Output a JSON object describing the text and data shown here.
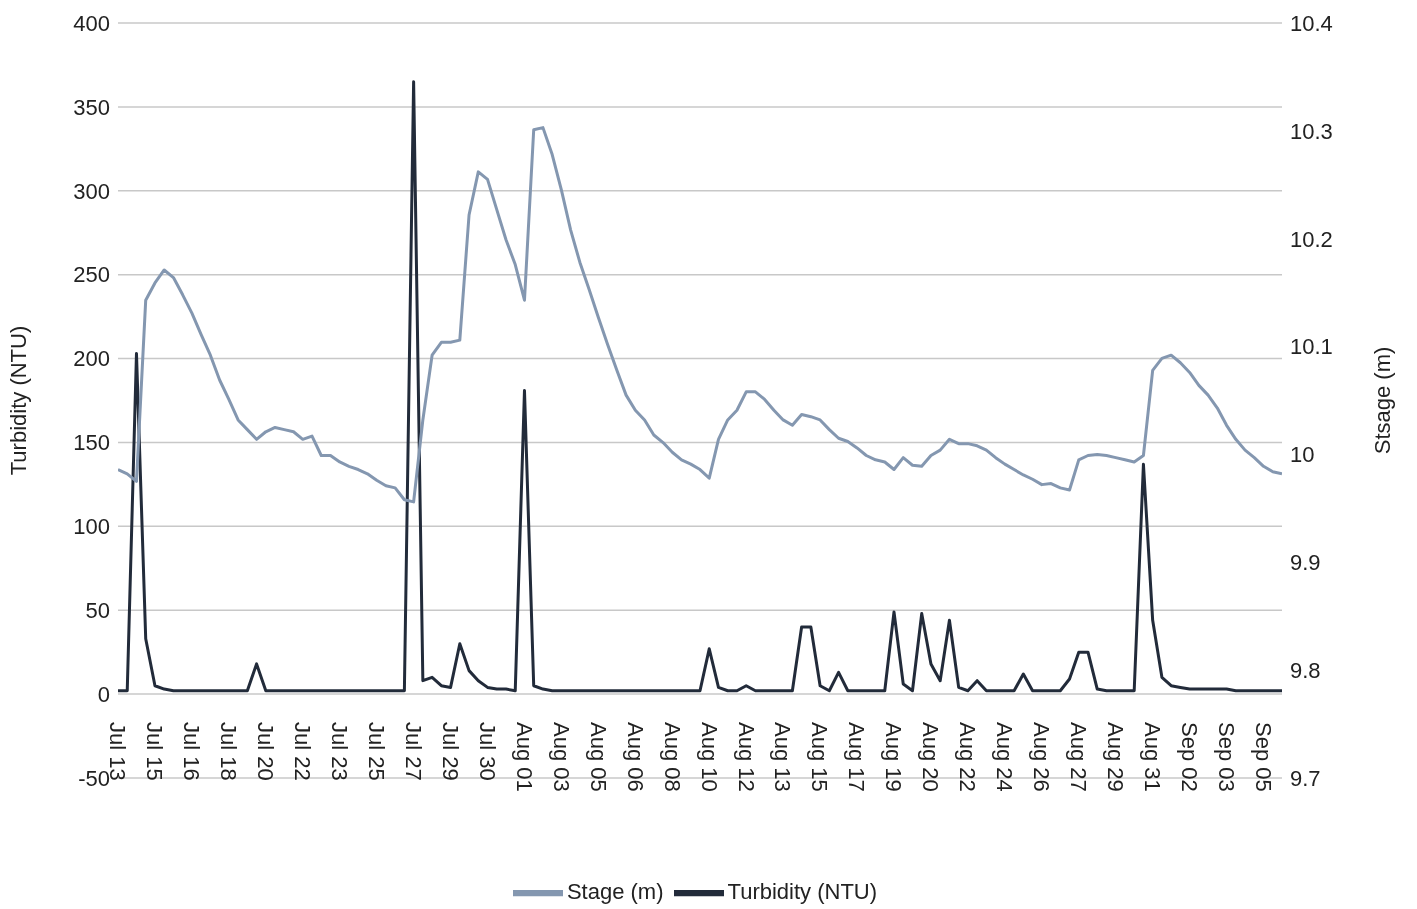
{
  "chart_data": {
    "type": "line",
    "ylabel": "Turbidity (NTU)",
    "y2label": "Stsage (m)",
    "categories": [
      "Jul 13",
      null,
      null,
      null,
      "Jul 15",
      null,
      null,
      null,
      "Jul 16",
      null,
      null,
      null,
      "Jul 18",
      null,
      null,
      null,
      "Jul 20",
      null,
      null,
      null,
      "Jul 22",
      null,
      null,
      null,
      "Jul 23",
      null,
      null,
      null,
      "Jul 25",
      null,
      null,
      null,
      "Jul 27",
      null,
      null,
      null,
      "Jul 29",
      null,
      null,
      null,
      "Jul 30",
      null,
      null,
      null,
      "Aug 01",
      null,
      null,
      null,
      "Aug 03",
      null,
      null,
      null,
      "Aug 05",
      null,
      null,
      null,
      "Aug 06",
      null,
      null,
      null,
      "Aug 08",
      null,
      null,
      null,
      "Aug 10",
      null,
      null,
      null,
      "Aug 12",
      null,
      null,
      null,
      "Aug 13",
      null,
      null,
      null,
      "Aug 15",
      null,
      null,
      null,
      "Aug 17",
      null,
      null,
      null,
      "Aug 19",
      null,
      null,
      null,
      "Aug 20",
      null,
      null,
      null,
      "Aug 22",
      null,
      null,
      null,
      "Aug 24",
      null,
      null,
      null,
      "Aug 26",
      null,
      null,
      null,
      "Aug 27",
      null,
      null,
      null,
      "Aug 29",
      null,
      null,
      null,
      "Aug 31",
      null,
      null,
      null,
      "Sep 02",
      null,
      null,
      null,
      "Sep 03",
      null,
      null,
      null,
      "Sep 05",
      null,
      null
    ],
    "series": [
      {
        "name": "Turbidity (NTU)",
        "color": "#222b3a",
        "values": [
          2,
          2,
          203,
          33,
          5,
          3,
          2,
          2,
          2,
          2,
          2,
          2,
          2,
          2,
          2,
          18,
          2,
          2,
          2,
          2,
          2,
          2,
          2,
          2,
          2,
          2,
          2,
          2,
          2,
          2,
          2,
          2,
          365,
          8,
          10,
          5,
          4,
          30,
          14,
          8,
          4,
          3,
          3,
          2,
          181,
          5,
          3,
          2,
          2,
          2,
          2,
          2,
          2,
          2,
          2,
          2,
          2,
          2,
          2,
          2,
          2,
          2,
          2,
          2,
          27,
          4,
          2,
          2,
          5,
          2,
          2,
          2,
          2,
          2,
          40,
          40,
          5,
          2,
          13,
          2,
          2,
          2,
          2,
          2,
          49,
          6,
          2,
          48,
          18,
          8,
          44,
          4,
          2,
          8,
          2,
          2,
          2,
          2,
          12,
          2,
          2,
          2,
          2,
          9,
          25,
          25,
          3,
          2,
          2,
          2,
          2,
          137,
          44,
          10,
          5,
          4,
          3,
          3,
          3,
          3,
          3,
          2,
          2,
          2,
          2,
          2,
          2
        ]
      },
      {
        "name": "Stage (m)",
        "color": "#8497b0",
        "axis": "y2",
        "values": [
          9.986,
          9.982,
          9.975,
          10.143,
          10.159,
          10.171,
          10.164,
          10.148,
          10.131,
          10.111,
          10.092,
          10.069,
          10.051,
          10.032,
          10.023,
          10.014,
          10.021,
          10.025,
          10.023,
          10.021,
          10.014,
          10.017,
          9.999,
          9.999,
          9.993,
          9.989,
          9.986,
          9.982,
          9.976,
          9.971,
          9.969,
          9.958,
          9.956,
          10.032,
          10.092,
          10.104,
          10.104,
          10.106,
          10.222,
          10.262,
          10.255,
          10.227,
          10.199,
          10.176,
          10.143,
          10.301,
          10.303,
          10.278,
          10.245,
          10.208,
          10.178,
          10.153,
          10.127,
          10.102,
          10.078,
          10.055,
          10.041,
          10.032,
          10.018,
          10.011,
          10.002,
          9.995,
          9.991,
          9.986,
          9.978,
          10.014,
          10.032,
          10.041,
          10.058,
          10.058,
          10.051,
          10.041,
          10.032,
          10.027,
          10.037,
          10.035,
          10.032,
          10.023,
          10.015,
          10.012,
          10.006,
          9.999,
          9.995,
          9.993,
          9.986,
          9.997,
          9.99,
          9.989,
          9.999,
          10.004,
          10.014,
          10.01,
          10.01,
          10.008,
          10.004,
          9.997,
          9.991,
          9.986,
          9.981,
          9.977,
          9.972,
          9.973,
          9.969,
          9.967,
          9.995,
          9.999,
          10.0,
          9.999,
          9.997,
          9.995,
          9.993,
          9.999,
          10.078,
          10.089,
          10.092,
          10.085,
          10.076,
          10.064,
          10.055,
          10.043,
          10.027,
          10.014,
          10.004,
          9.997,
          9.989,
          9.984,
          9.982
        ]
      }
    ],
    "ylim": [
      -50,
      400
    ],
    "yticks": [
      -50,
      0,
      50,
      100,
      150,
      200,
      250,
      300,
      350,
      400
    ],
    "y2lim": [
      9.7,
      10.4
    ],
    "y2ticks": [
      9.7,
      9.8,
      9.9,
      10,
      10.1,
      10.2,
      10.3,
      10.4
    ],
    "grid": "y",
    "legend": "bottom",
    "marker": "none",
    "line_style": "solid"
  }
}
